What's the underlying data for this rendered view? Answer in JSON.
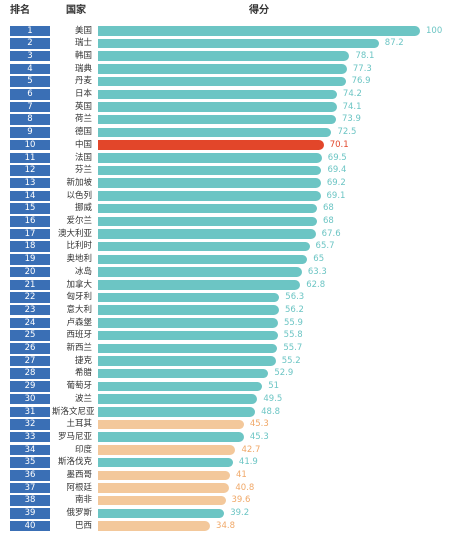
{
  "header": {
    "rank_label": "排名",
    "country_label": "国家",
    "score_label": "得分"
  },
  "colors": {
    "rank_box": "#3a6fb5",
    "bar_default": "#6cc5c4",
    "bar_highlight": "#e2462a",
    "bar_light": "#f3c89b",
    "value_default": "#6cc5c4",
    "value_highlight": "#e2462a",
    "value_light": "#f0a868"
  },
  "chart_data": {
    "type": "bar",
    "orientation": "horizontal",
    "xlim": [
      0,
      100
    ],
    "ranks": [
      1,
      2,
      3,
      4,
      5,
      6,
      7,
      8,
      9,
      10,
      11,
      12,
      13,
      14,
      15,
      16,
      17,
      18,
      19,
      20,
      21,
      22,
      23,
      24,
      25,
      26,
      27,
      28,
      29,
      30,
      31,
      32,
      33,
      34,
      35,
      36,
      37,
      38,
      39,
      40
    ],
    "categories": [
      "美国",
      "瑞士",
      "韩国",
      "瑞典",
      "丹麦",
      "日本",
      "英国",
      "荷兰",
      "德国",
      "中国",
      "法国",
      "芬兰",
      "新加坡",
      "以色列",
      "挪威",
      "爱尔兰",
      "澳大利亚",
      "比利时",
      "奥地利",
      "冰岛",
      "加拿大",
      "匈牙利",
      "意大利",
      "卢森堡",
      "西班牙",
      "新西兰",
      "捷克",
      "希腊",
      "葡萄牙",
      "波兰",
      "斯洛文尼亚",
      "土耳其",
      "罗马尼亚",
      "印度",
      "斯洛伐克",
      "墨西哥",
      "阿根廷",
      "南非",
      "俄罗斯",
      "巴西"
    ],
    "values": [
      100,
      87.2,
      78.1,
      77.3,
      76.9,
      74.2,
      74.1,
      73.9,
      72.5,
      70.1,
      69.5,
      69.4,
      69.2,
      69.1,
      68,
      68,
      67.6,
      65.7,
      65,
      63.3,
      62.8,
      56.3,
      56.2,
      55.9,
      55.8,
      55.7,
      55.2,
      52.9,
      51,
      49.5,
      48.8,
      45.3,
      45.3,
      42.7,
      41.9,
      41,
      40.8,
      39.6,
      39.2,
      34.8
    ],
    "value_labels": [
      "100",
      "87.2",
      "78.1",
      "77.3",
      "76.9",
      "74.2",
      "74.1",
      "73.9",
      "72.5",
      "70.1",
      "69.5",
      "69.4",
      "69.2",
      "69.1",
      "68",
      "68",
      "67.6",
      "65.7",
      "65",
      "63.3",
      "62.8",
      "56.3",
      "56.2",
      "55.9",
      "55.8",
      "55.7",
      "55.2",
      "52.9",
      "51",
      "49.5",
      "48.8",
      "45.3",
      "45.3",
      "42.7",
      "41.9",
      "41",
      "40.8",
      "39.6",
      "39.2",
      "34.8"
    ],
    "bar_colors": [
      "#6cc5c4",
      "#6cc5c4",
      "#6cc5c4",
      "#6cc5c4",
      "#6cc5c4",
      "#6cc5c4",
      "#6cc5c4",
      "#6cc5c4",
      "#6cc5c4",
      "#e2462a",
      "#6cc5c4",
      "#6cc5c4",
      "#6cc5c4",
      "#6cc5c4",
      "#6cc5c4",
      "#6cc5c4",
      "#6cc5c4",
      "#6cc5c4",
      "#6cc5c4",
      "#6cc5c4",
      "#6cc5c4",
      "#6cc5c4",
      "#6cc5c4",
      "#6cc5c4",
      "#6cc5c4",
      "#6cc5c4",
      "#6cc5c4",
      "#6cc5c4",
      "#6cc5c4",
      "#6cc5c4",
      "#6cc5c4",
      "#f3c89b",
      "#6cc5c4",
      "#f3c89b",
      "#6cc5c4",
      "#f3c89b",
      "#f3c89b",
      "#f3c89b",
      "#6cc5c4",
      "#f3c89b"
    ],
    "grid": false,
    "legend": "none"
  }
}
